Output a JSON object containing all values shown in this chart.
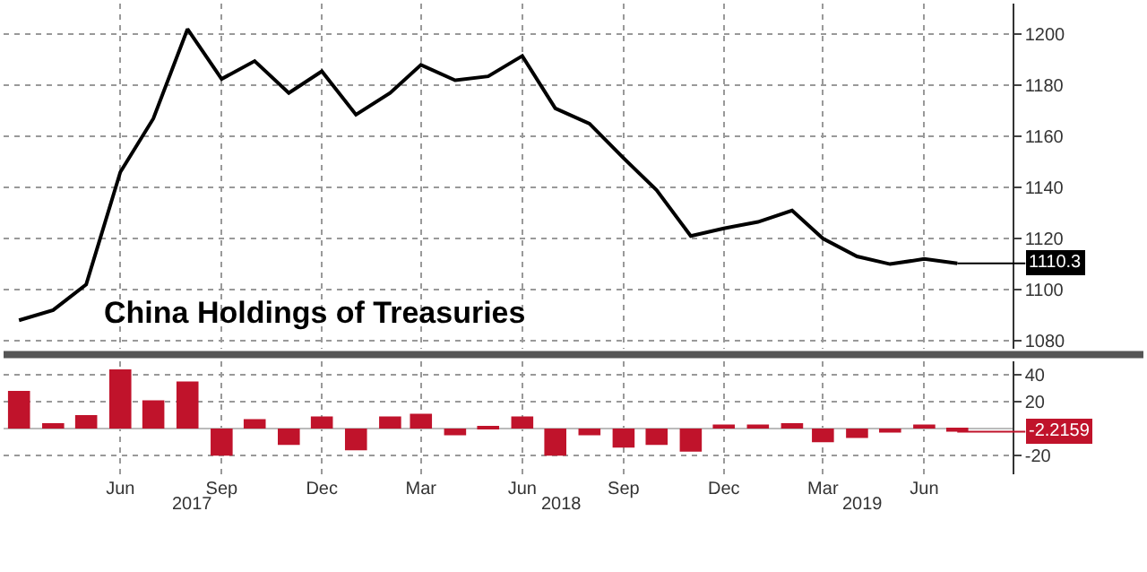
{
  "chart_data": [
    {
      "type": "line",
      "title": "China Holdings of Treasuries",
      "x": [
        "2017-03",
        "2017-04",
        "2017-05",
        "2017-06",
        "2017-07",
        "2017-08",
        "2017-09",
        "2017-10",
        "2017-11",
        "2017-12",
        "2018-01",
        "2018-02",
        "2018-03",
        "2018-04",
        "2018-05",
        "2018-06",
        "2018-07",
        "2018-08",
        "2018-09",
        "2018-10",
        "2018-11",
        "2018-12",
        "2019-01",
        "2019-02",
        "2019-03",
        "2019-04",
        "2019-05",
        "2019-06",
        "2019-07"
      ],
      "series": [
        {
          "color": "#000000",
          "values": [
            1088,
            1092,
            1102,
            1146,
            1167,
            1202,
            1182.5,
            1189.5,
            1177,
            1185.5,
            1168.5,
            1177,
            1188,
            1182,
            1183.5,
            1191.5,
            1171,
            1165,
            1151.5,
            1139,
            1121,
            1124,
            1126.5,
            1131,
            1120,
            1113,
            1110,
            1112,
            1110.3
          ],
          "value_labels": [
            null,
            null,
            null,
            null,
            null,
            null,
            null,
            null,
            null,
            null,
            null,
            null,
            null,
            null,
            null,
            null,
            null,
            null,
            null,
            null,
            null,
            null,
            null,
            null,
            null,
            null,
            null,
            null,
            "1110.3"
          ]
        }
      ],
      "xlim": [
        "2017-02-15",
        "2019-08-20"
      ],
      "xticks": [
        {
          "value": "2017-06",
          "label": null
        },
        {
          "value": "2017-09",
          "label": null
        },
        {
          "value": "2017-12",
          "label": null
        },
        {
          "value": "2018-03",
          "label": null
        },
        {
          "value": "2018-06",
          "label": null
        },
        {
          "value": "2018-09",
          "label": null
        },
        {
          "value": "2018-12",
          "label": null
        },
        {
          "value": "2019-03",
          "label": null
        },
        {
          "value": "2019-06",
          "label": null
        }
      ],
      "ylim": [
        1077,
        1212
      ],
      "yticks": [
        1080,
        1100,
        1120,
        1140,
        1160,
        1180,
        1200
      ],
      "grid": true,
      "tick_labels": "y",
      "line_style": "solid",
      "marker": "none"
    },
    {
      "type": "bar",
      "x": [
        "2017-03",
        "2017-04",
        "2017-05",
        "2017-06",
        "2017-07",
        "2017-08",
        "2017-09",
        "2017-10",
        "2017-11",
        "2017-12",
        "2018-01",
        "2018-02",
        "2018-03",
        "2018-04",
        "2018-05",
        "2018-06",
        "2018-07",
        "2018-08",
        "2018-09",
        "2018-10",
        "2018-11",
        "2018-12",
        "2019-01",
        "2019-02",
        "2019-03",
        "2019-04",
        "2019-05",
        "2019-06",
        "2019-07"
      ],
      "series": [
        {
          "color": "#c0132b",
          "values": [
            28,
            4,
            10,
            44,
            21,
            35,
            -20,
            7,
            -12,
            9,
            -16,
            9,
            11,
            -5,
            1,
            9,
            -20,
            -5,
            -14,
            -12,
            -17,
            3,
            3,
            4,
            -10,
            -7,
            -3,
            3,
            -2.2159
          ],
          "value_labels": [
            null,
            null,
            null,
            null,
            null,
            null,
            null,
            null,
            null,
            null,
            null,
            null,
            null,
            null,
            null,
            null,
            null,
            null,
            null,
            null,
            null,
            null,
            null,
            null,
            null,
            null,
            null,
            null,
            "-2.2159"
          ]
        }
      ],
      "xlim": [
        "2017-02-15",
        "2019-08-20"
      ],
      "xticks": [
        {
          "value": "2017-06",
          "label": "Jun"
        },
        {
          "value": "2017-09",
          "label": "Sep"
        },
        {
          "value": "2017-12",
          "label": "Dec"
        },
        {
          "value": "2018-03",
          "label": "Mar"
        },
        {
          "value": "2018-06",
          "label": "Jun"
        },
        {
          "value": "2018-09",
          "label": "Sep"
        },
        {
          "value": "2018-12",
          "label": "Dec"
        },
        {
          "value": "2019-03",
          "label": "Mar"
        },
        {
          "value": "2019-06",
          "label": "Jun"
        }
      ],
      "ylim": [
        -34,
        50
      ],
      "yticks": [
        {
          "value": -20,
          "label": "-20"
        },
        20,
        40
      ],
      "grid": true,
      "annotations": [
        "2017",
        "2018",
        "2019"
      ]
    }
  ]
}
